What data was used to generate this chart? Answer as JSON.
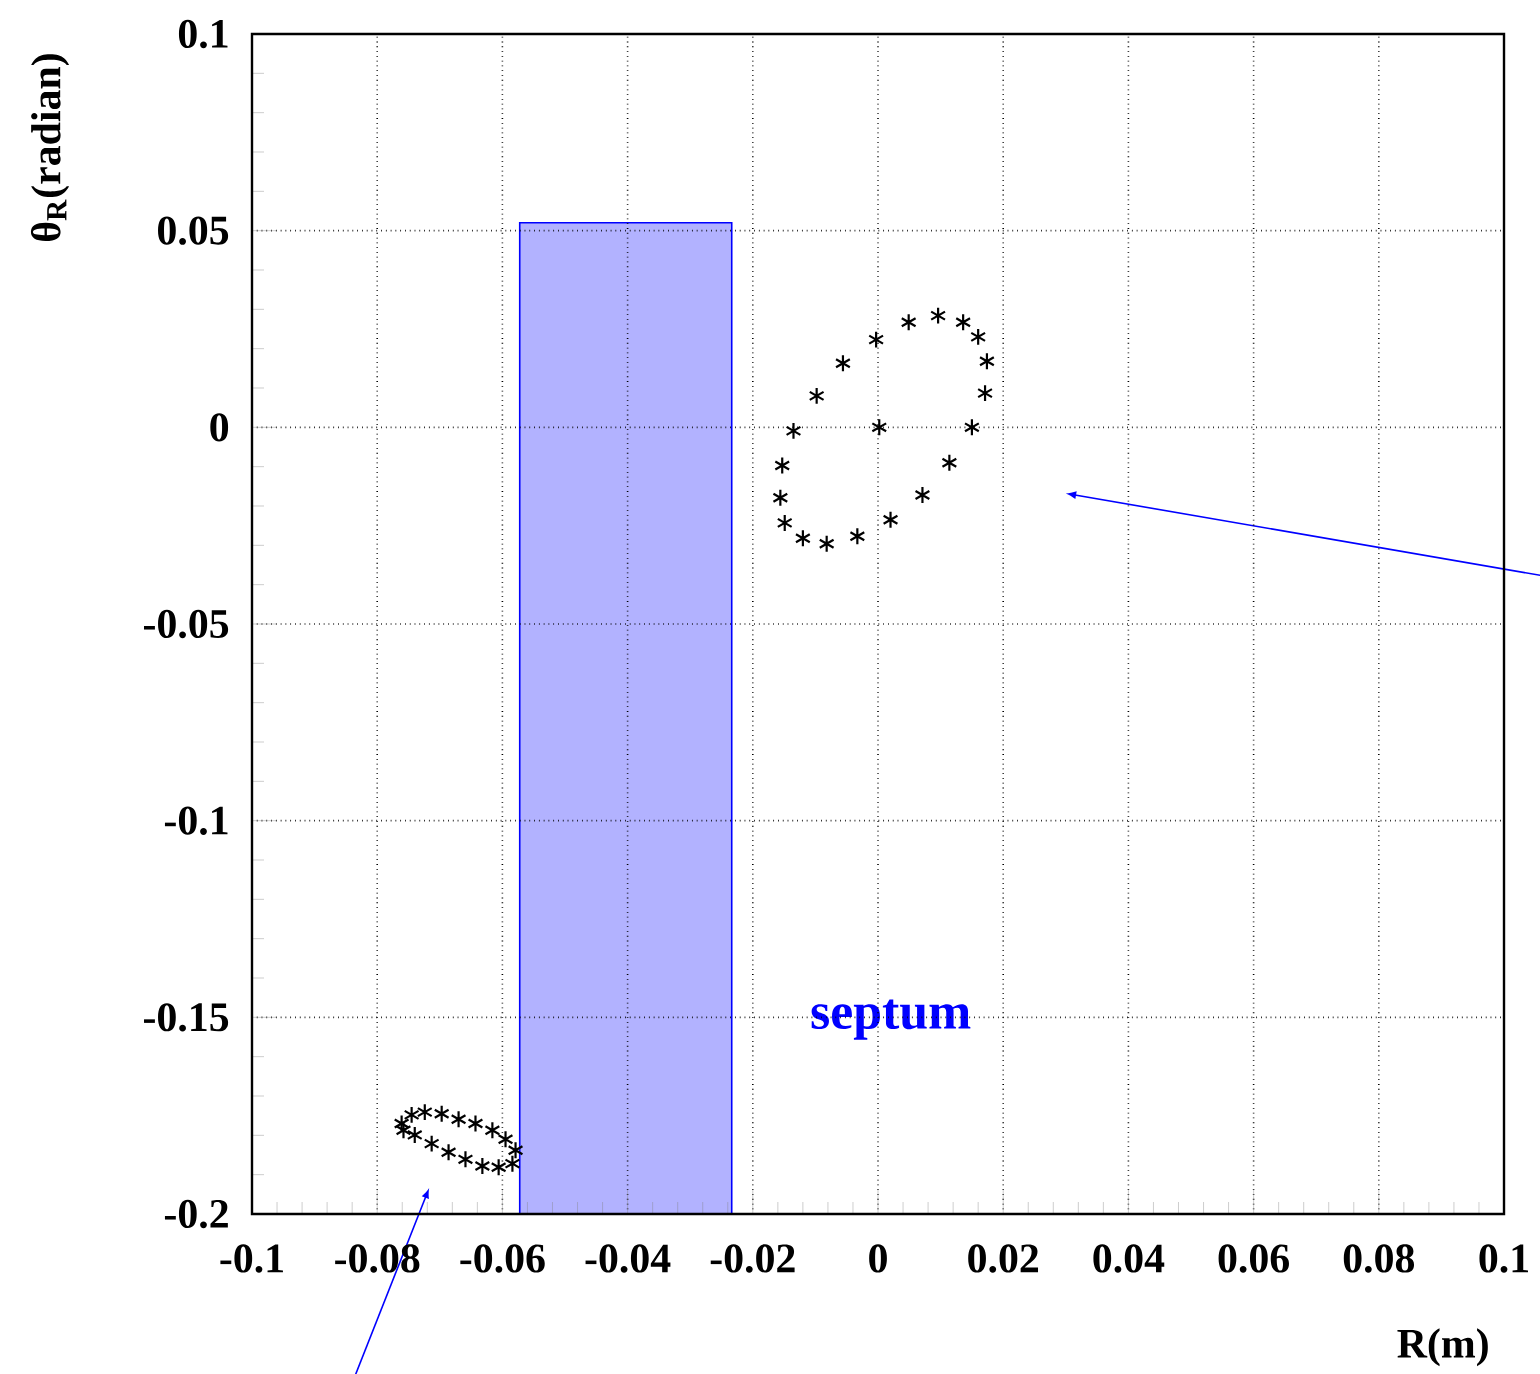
{
  "chart_data": {
    "type": "scatter",
    "xlabel": "R(m)",
    "ylabel": "θ$_{R}$(radian)",
    "xlim": [
      -0.1,
      0.1
    ],
    "ylim": [
      -0.2,
      0.1
    ],
    "xticks": [
      -0.1,
      -0.08,
      -0.06,
      -0.04,
      -0.02,
      0,
      0.02,
      0.04,
      0.06,
      0.08,
      0.1
    ],
    "yticks": [
      -0.2,
      -0.15,
      -0.1,
      -0.05,
      0,
      0.05,
      0.1
    ],
    "grid": true,
    "series": [
      {
        "type": "bar",
        "name": "septum",
        "color": "#0000ff",
        "x": [
          -0.0403
        ],
        "base": [
          -0.2
        ],
        "values": [
          0.252
        ]
      },
      {
        "color": "#000000",
        "marker": "cross",
        "x": [
          0.0049,
          0.0096,
          0.0136,
          0.016,
          0.0174,
          0.0171,
          0.015,
          0.0114,
          0.0071,
          0.002,
          -0.0033,
          -0.0082,
          -0.012,
          -0.0149,
          -0.0156,
          -0.0153,
          -0.0135,
          -0.0098,
          -0.0056,
          -0.0003,
          0.0002
        ],
        "values": [
          0.0267,
          0.0284,
          0.0267,
          0.023,
          0.0168,
          0.0087,
          0.0,
          -0.009,
          -0.0172,
          -0.0235,
          -0.0277,
          -0.0296,
          -0.0282,
          -0.0243,
          -0.0179,
          -0.0097,
          -0.0009,
          0.008,
          0.0163,
          0.0223,
          0.0
        ]
      },
      {
        "color": "#000000",
        "marker": "cross",
        "x": [
          -0.0761,
          -0.0745,
          -0.0724,
          -0.0697,
          -0.067,
          -0.0643,
          -0.0616,
          -0.0595,
          -0.0579,
          -0.0584,
          -0.0606,
          -0.0632,
          -0.0659,
          -0.0686,
          -0.0713,
          -0.074,
          -0.0758
        ],
        "values": [
          -0.177,
          -0.1748,
          -0.1741,
          -0.1745,
          -0.1759,
          -0.177,
          -0.1787,
          -0.181,
          -0.1838,
          -0.1872,
          -0.1881,
          -0.1878,
          -0.1861,
          -0.1843,
          -0.1821,
          -0.1799,
          -0.1787
        ]
      }
    ]
  }
}
